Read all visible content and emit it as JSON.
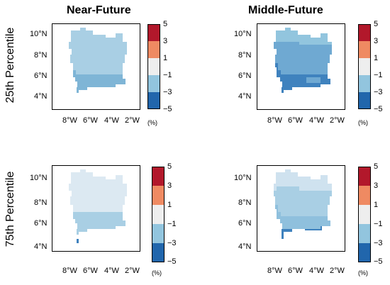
{
  "columns": [
    "Near-Future",
    "Middle-Future"
  ],
  "rows": [
    "25th Percentile",
    "75th Percentile"
  ],
  "axes": {
    "x_ticks": [
      "8°W",
      "6°W",
      "4°W",
      "2°W"
    ],
    "y_ticks": [
      "10°N",
      "8°N",
      "6°N",
      "4°N"
    ]
  },
  "colorbar": {
    "labels": [
      "5",
      "3",
      "1",
      "−1",
      "−3",
      "−5"
    ],
    "unit": "(%)",
    "colors": [
      "#b2182b",
      "#ef8a62",
      "#eeeeee",
      "#92c5de",
      "#2166ac"
    ]
  },
  "panels": [
    {
      "name": "near-future-25th",
      "dominant_class": "-3 to -1 (light blue)",
      "colors": {
        "north": "#a9cfe4",
        "south": "#7fb5d6"
      }
    },
    {
      "name": "middle-future-25th",
      "dominant_class": "-3 to -1 with -5 to -3 in south",
      "colors": {
        "north": "#6fa9d2",
        "south": "#3f82be"
      }
    },
    {
      "name": "near-future-75th",
      "dominant_class": "-1 to 1 north, -3 to -1 south",
      "colors": {
        "north": "#dce9f2",
        "south": "#a9cfe4"
      }
    },
    {
      "name": "middle-future-75th",
      "dominant_class": "-3 to -1 (light blue)",
      "colors": {
        "north": "#cfe2ef",
        "south": "#8fc0dd"
      }
    }
  ]
}
